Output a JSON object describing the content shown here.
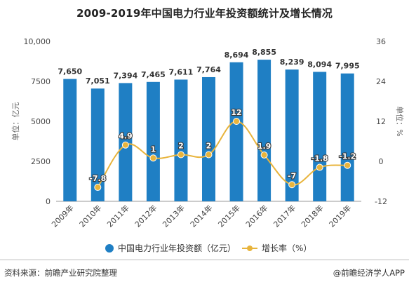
{
  "chart_data": {
    "type": "bar",
    "title": "2009-2019年中国电力行业年投资额统计及增长情况",
    "categories": [
      "2009年",
      "2010年",
      "2011年",
      "2012年",
      "2013年",
      "2014年",
      "2015年",
      "2016年",
      "2017年",
      "2018年",
      "2019年"
    ],
    "series": [
      {
        "name": "中国电力行业年投资额（亿元）",
        "type": "bar",
        "axis": "left",
        "values": [
          7650,
          7051,
          7394,
          7465,
          7611,
          7764,
          8694,
          8855,
          8239,
          8094,
          7995
        ],
        "labels": [
          "7,650",
          "7,051",
          "7,394",
          "7,465",
          "7,611",
          "7,764",
          "8,694",
          "8,855",
          "8,239",
          "8,094",
          "7,995"
        ],
        "color": "#1f7fc4"
      },
      {
        "name": "增长率（%）",
        "type": "line",
        "axis": "right",
        "values": [
          null,
          -7.8,
          4.9,
          1,
          2,
          2,
          12,
          1.9,
          -7,
          -1.8,
          -1.2
        ],
        "labels": [
          "",
          "-7.8",
          "4.9",
          "1",
          "2",
          "2",
          "12",
          "1.9",
          "-7",
          "-1.8",
          "-1.2"
        ],
        "color": "#e8b43c"
      }
    ],
    "ylabel": "单位：亿元",
    "y2label": "单位：%",
    "ylim": [
      0,
      10000
    ],
    "yticks": [
      "0",
      "2500",
      "5000",
      "7500",
      "10,000"
    ],
    "y2lim": [
      -12,
      36
    ],
    "y2ticks": [
      "-12",
      "0",
      "12",
      "24",
      "36"
    ],
    "grid": false,
    "legend": "bottom"
  },
  "footer": {
    "source": "资料来源：前瞻产业研究院整理",
    "credit": "@前瞻经济学人APP"
  }
}
